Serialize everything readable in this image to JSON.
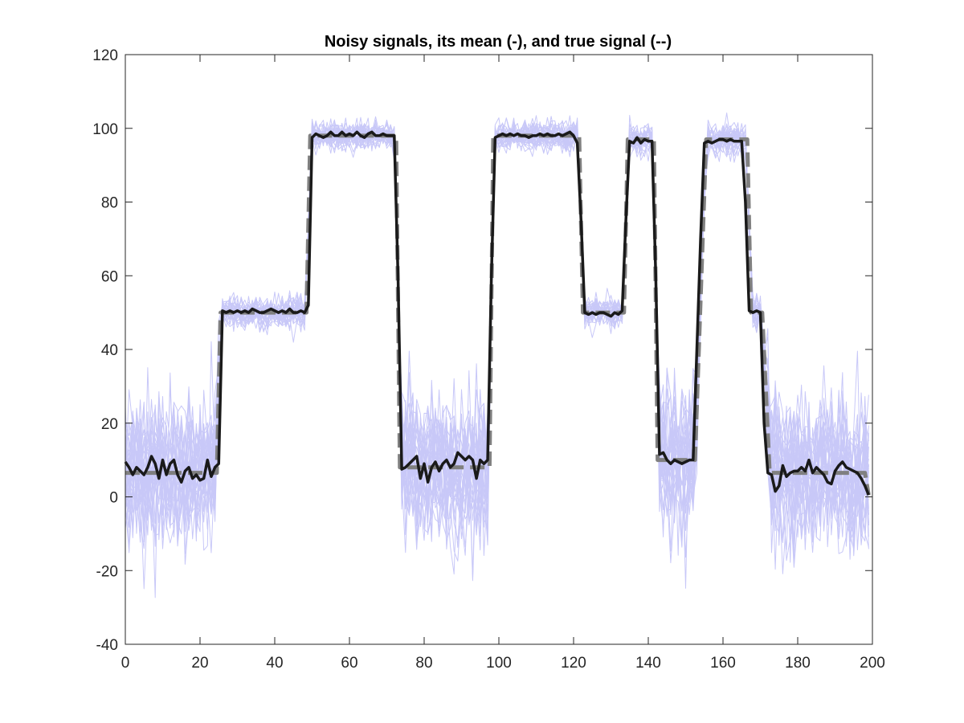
{
  "chart_data": {
    "type": "line",
    "title": "Noisy signals, its mean (-), and true signal (--)",
    "xlabel": "",
    "ylabel": "",
    "xlim": [
      0,
      200
    ],
    "ylim": [
      -40,
      120
    ],
    "x_ticks": [
      0,
      20,
      40,
      60,
      80,
      100,
      120,
      140,
      160,
      180,
      200
    ],
    "y_ticks": [
      -40,
      -20,
      0,
      20,
      40,
      60,
      80,
      100,
      120
    ],
    "grid": false,
    "box": true,
    "colors": {
      "noisy": "#c8c8f8",
      "mean": "#1a1a1a",
      "true": "#808080",
      "axis": "#262626"
    },
    "noisy_signals": {
      "count": 30,
      "description_ranges": "each trace = true signal + noise",
      "noise_sd_low_segments": 10,
      "noise_sd_high_segments": 2
    },
    "series": [
      {
        "style": "dashed",
        "points": [
          [
            0,
            6.5
          ],
          [
            24.5,
            6.5
          ],
          [
            25.5,
            50
          ],
          [
            48.5,
            50
          ],
          [
            49.5,
            98
          ],
          [
            72.5,
            98
          ],
          [
            73.5,
            8
          ],
          [
            97.5,
            8
          ],
          [
            98.5,
            98
          ],
          [
            121.5,
            98
          ],
          [
            122.5,
            50
          ],
          [
            133.5,
            50
          ],
          [
            134.5,
            97
          ],
          [
            141.5,
            97
          ],
          [
            142.5,
            10
          ],
          [
            152.5,
            10
          ],
          [
            155.5,
            97
          ],
          [
            166.5,
            97
          ],
          [
            167.5,
            50
          ],
          [
            170.5,
            50
          ],
          [
            172.5,
            6.5
          ],
          [
            198,
            6.5
          ],
          [
            199,
            0.5
          ]
        ]
      },
      {
        "style": "solid",
        "points": [
          [
            0,
            9.5
          ],
          [
            1,
            8
          ],
          [
            2,
            6
          ],
          [
            3,
            8
          ],
          [
            4,
            7
          ],
          [
            5,
            6
          ],
          [
            6,
            8
          ],
          [
            7,
            11
          ],
          [
            8,
            9
          ],
          [
            9,
            5
          ],
          [
            10,
            10
          ],
          [
            11,
            6
          ],
          [
            12,
            9
          ],
          [
            13,
            10
          ],
          [
            14,
            6
          ],
          [
            15,
            4
          ],
          [
            16,
            7
          ],
          [
            17,
            8
          ],
          [
            18,
            5
          ],
          [
            19,
            6
          ],
          [
            20,
            4.5
          ],
          [
            21,
            5
          ],
          [
            22,
            10
          ],
          [
            23,
            5.5
          ],
          [
            24,
            8
          ],
          [
            25,
            9
          ],
          [
            26,
            50.5
          ],
          [
            27,
            50
          ],
          [
            28,
            50.5
          ],
          [
            29,
            50
          ],
          [
            30,
            50.5
          ],
          [
            31,
            50
          ],
          [
            32,
            50.5
          ],
          [
            33,
            50
          ],
          [
            34,
            51
          ],
          [
            35,
            50.5
          ],
          [
            36,
            50
          ],
          [
            37,
            50
          ],
          [
            38,
            50.5
          ],
          [
            39,
            51
          ],
          [
            40,
            50.5
          ],
          [
            41,
            50
          ],
          [
            42,
            50.5
          ],
          [
            43,
            50
          ],
          [
            44,
            51
          ],
          [
            45,
            50
          ],
          [
            46,
            50
          ],
          [
            47,
            50.5
          ],
          [
            48,
            50
          ],
          [
            49,
            52
          ],
          [
            50,
            97.5
          ],
          [
            51,
            98.5
          ],
          [
            52,
            98
          ],
          [
            53,
            97.5
          ],
          [
            54,
            98
          ],
          [
            55,
            99
          ],
          [
            56,
            98
          ],
          [
            57,
            98
          ],
          [
            58,
            99
          ],
          [
            59,
            98
          ],
          [
            60,
            98.5
          ],
          [
            61,
            98
          ],
          [
            62,
            99
          ],
          [
            63,
            98
          ],
          [
            64,
            97.5
          ],
          [
            65,
            98.5
          ],
          [
            66,
            99
          ],
          [
            67,
            98
          ],
          [
            68,
            98
          ],
          [
            69,
            98.5
          ],
          [
            70,
            98
          ],
          [
            71,
            98
          ],
          [
            72,
            98
          ],
          [
            73,
            60
          ],
          [
            74,
            7.5
          ],
          [
            75,
            8
          ],
          [
            76,
            9
          ],
          [
            77,
            10
          ],
          [
            78,
            11
          ],
          [
            79,
            5
          ],
          [
            80,
            9
          ],
          [
            81,
            4
          ],
          [
            82,
            8
          ],
          [
            83,
            9.5
          ],
          [
            84,
            7
          ],
          [
            85,
            9
          ],
          [
            86,
            10
          ],
          [
            87,
            8
          ],
          [
            88,
            9
          ],
          [
            89,
            12
          ],
          [
            90,
            11
          ],
          [
            91,
            10
          ],
          [
            92,
            11
          ],
          [
            93,
            10
          ],
          [
            94,
            5
          ],
          [
            95,
            10
          ],
          [
            96,
            9
          ],
          [
            97,
            10
          ],
          [
            98,
            60
          ],
          [
            99,
            97.5
          ],
          [
            100,
            98
          ],
          [
            101,
            98.5
          ],
          [
            102,
            98
          ],
          [
            103,
            98.5
          ],
          [
            104,
            98
          ],
          [
            105,
            98.5
          ],
          [
            106,
            98
          ],
          [
            107,
            98
          ],
          [
            108,
            97.5
          ],
          [
            109,
            98
          ],
          [
            110,
            98
          ],
          [
            111,
            98.5
          ],
          [
            112,
            98
          ],
          [
            113,
            98.5
          ],
          [
            114,
            98
          ],
          [
            115,
            98
          ],
          [
            116,
            98.5
          ],
          [
            117,
            98
          ],
          [
            118,
            98.5
          ],
          [
            119,
            99
          ],
          [
            120,
            98
          ],
          [
            121,
            96
          ],
          [
            122,
            75
          ],
          [
            123,
            50
          ],
          [
            124,
            49.5
          ],
          [
            125,
            50
          ],
          [
            126,
            49.5
          ],
          [
            127,
            50
          ],
          [
            128,
            50
          ],
          [
            129,
            49.5
          ],
          [
            130,
            49
          ],
          [
            131,
            50
          ],
          [
            132,
            49.5
          ],
          [
            133,
            50.5
          ],
          [
            134,
            75
          ],
          [
            135,
            96.5
          ],
          [
            136,
            96
          ],
          [
            137,
            97.5
          ],
          [
            138,
            96
          ],
          [
            139,
            97
          ],
          [
            140,
            96.5
          ],
          [
            141,
            96.5
          ],
          [
            142,
            60
          ],
          [
            143,
            11.5
          ],
          [
            144,
            12
          ],
          [
            145,
            10
          ],
          [
            146,
            9
          ],
          [
            147,
            10
          ],
          [
            148,
            9.5
          ],
          [
            149,
            9
          ],
          [
            150,
            9.5
          ],
          [
            151,
            10
          ],
          [
            152,
            10
          ],
          [
            153,
            40
          ],
          [
            154,
            70
          ],
          [
            155,
            96
          ],
          [
            156,
            96.5
          ],
          [
            157,
            96
          ],
          [
            158,
            96.5
          ],
          [
            159,
            97
          ],
          [
            160,
            97
          ],
          [
            161,
            96.5
          ],
          [
            162,
            97
          ],
          [
            163,
            96.5
          ],
          [
            164,
            96.5
          ],
          [
            165,
            96.5
          ],
          [
            166,
            80
          ],
          [
            167,
            50.5
          ],
          [
            168,
            50
          ],
          [
            169,
            50.5
          ],
          [
            170,
            50
          ],
          [
            171,
            20
          ],
          [
            172,
            6.5
          ],
          [
            173,
            6
          ],
          [
            174,
            1.5
          ],
          [
            175,
            3
          ],
          [
            176,
            8.5
          ],
          [
            177,
            5.5
          ],
          [
            178,
            6.5
          ],
          [
            179,
            7
          ],
          [
            180,
            7
          ],
          [
            181,
            8
          ],
          [
            182,
            7
          ],
          [
            183,
            10
          ],
          [
            184,
            6.5
          ],
          [
            185,
            8
          ],
          [
            186,
            7
          ],
          [
            187,
            6
          ],
          [
            188,
            4
          ],
          [
            189,
            3.5
          ],
          [
            190,
            7
          ],
          [
            191,
            8.5
          ],
          [
            192,
            9.5
          ],
          [
            193,
            8
          ],
          [
            194,
            7.5
          ],
          [
            195,
            7
          ],
          [
            196,
            6.5
          ],
          [
            197,
            5
          ],
          [
            198,
            3
          ],
          [
            199,
            0.5
          ]
        ]
      }
    ]
  }
}
